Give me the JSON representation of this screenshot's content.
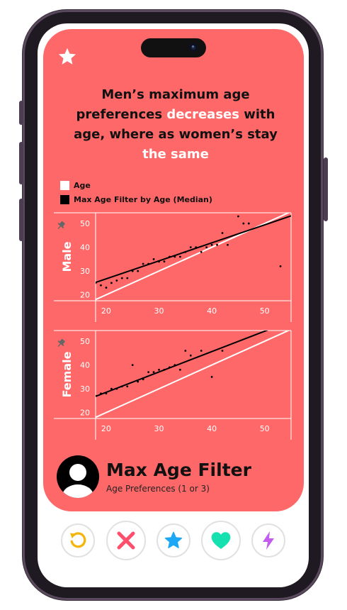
{
  "card": {
    "title_parts": [
      "Men’s maximum age preferences ",
      "decreases",
      " with age, where as women’s stay ",
      "the same"
    ],
    "legend": [
      {
        "label": "Age",
        "color": "#ffffff"
      },
      {
        "label": "Max Age Filter by Age (Median)",
        "color": "#000000"
      }
    ],
    "profile": {
      "name": "Max Age Filter",
      "subtitle": "Age Preferences (1 or 3)"
    }
  },
  "colors": {
    "card_bg": "#ff6868",
    "age_line": "#ffffff",
    "median_line": "#000000",
    "highlight": "#ffffff"
  },
  "actions": [
    {
      "name": "rewind-button",
      "icon": "rewind-icon",
      "color": "#f5b50a"
    },
    {
      "name": "nope-button",
      "icon": "x-icon",
      "color": "#ff4f6b"
    },
    {
      "name": "super-like-button",
      "icon": "star-icon",
      "color": "#1ca8f5"
    },
    {
      "name": "like-button",
      "icon": "heart-icon",
      "color": "#14e0b0"
    },
    {
      "name": "boost-button",
      "icon": "bolt-icon",
      "color": "#c45cf0"
    }
  ],
  "chart_data": [
    {
      "type": "scatter",
      "ylabel": "Male",
      "x_ticks": [
        20,
        30,
        40,
        50
      ],
      "y_ticks": [
        20,
        30,
        40,
        50
      ],
      "xlim": [
        18,
        55
      ],
      "ylim": [
        17.5,
        54.5
      ],
      "grid": false,
      "series": [
        {
          "name": "Age",
          "line": [
            [
              18,
              18
            ],
            [
              55,
              55
            ]
          ]
        },
        {
          "name": "Max Age Filter by Age (Median)",
          "line": [
            [
              18,
              25.2
            ],
            [
              55,
              53.2
            ]
          ],
          "points": [
            [
              18,
              25
            ],
            [
              19,
              24
            ],
            [
              20,
              23
            ],
            [
              21,
              25
            ],
            [
              22,
              26
            ],
            [
              23,
              27
            ],
            [
              24,
              27
            ],
            [
              25,
              30
            ],
            [
              26,
              30
            ],
            [
              27,
              33
            ],
            [
              28,
              33
            ],
            [
              29,
              35
            ],
            [
              30,
              34
            ],
            [
              31,
              34
            ],
            [
              32,
              36
            ],
            [
              33,
              36
            ],
            [
              34,
              36
            ],
            [
              35,
              38
            ],
            [
              36,
              40
            ],
            [
              37,
              40
            ],
            [
              38,
              38
            ],
            [
              39,
              40
            ],
            [
              40,
              41
            ],
            [
              41,
              41
            ],
            [
              42,
              46
            ],
            [
              43,
              41
            ],
            [
              45,
              53
            ],
            [
              46,
              50
            ],
            [
              47,
              50
            ],
            [
              51,
              55
            ],
            [
              53,
              32
            ]
          ]
        }
      ]
    },
    {
      "type": "scatter",
      "ylabel": "Female",
      "x_ticks": [
        20,
        30,
        40,
        50
      ],
      "y_ticks": [
        20,
        30,
        40,
        50
      ],
      "xlim": [
        18,
        55
      ],
      "ylim": [
        17.5,
        54.5
      ],
      "grid": false,
      "series": [
        {
          "name": "Age",
          "line": [
            [
              18,
              18
            ],
            [
              55,
              55
            ]
          ]
        },
        {
          "name": "Max Age Filter by Age (Median)",
          "line": [
            [
              18,
              26.8
            ],
            [
              55,
              58.5
            ]
          ],
          "points": [
            [
              18,
              27
            ],
            [
              19,
              28
            ],
            [
              20,
              28
            ],
            [
              21,
              30
            ],
            [
              22,
              30
            ],
            [
              23,
              31
            ],
            [
              24,
              31
            ],
            [
              25,
              40
            ],
            [
              26,
              33
            ],
            [
              27,
              34
            ],
            [
              28,
              37
            ],
            [
              29,
              37
            ],
            [
              30,
              38
            ],
            [
              31,
              38
            ],
            [
              32,
              39
            ],
            [
              33,
              40
            ],
            [
              34,
              38
            ],
            [
              35,
              46
            ],
            [
              36,
              44
            ],
            [
              38,
              46
            ],
            [
              40,
              35
            ],
            [
              42,
              46
            ]
          ]
        }
      ]
    }
  ]
}
